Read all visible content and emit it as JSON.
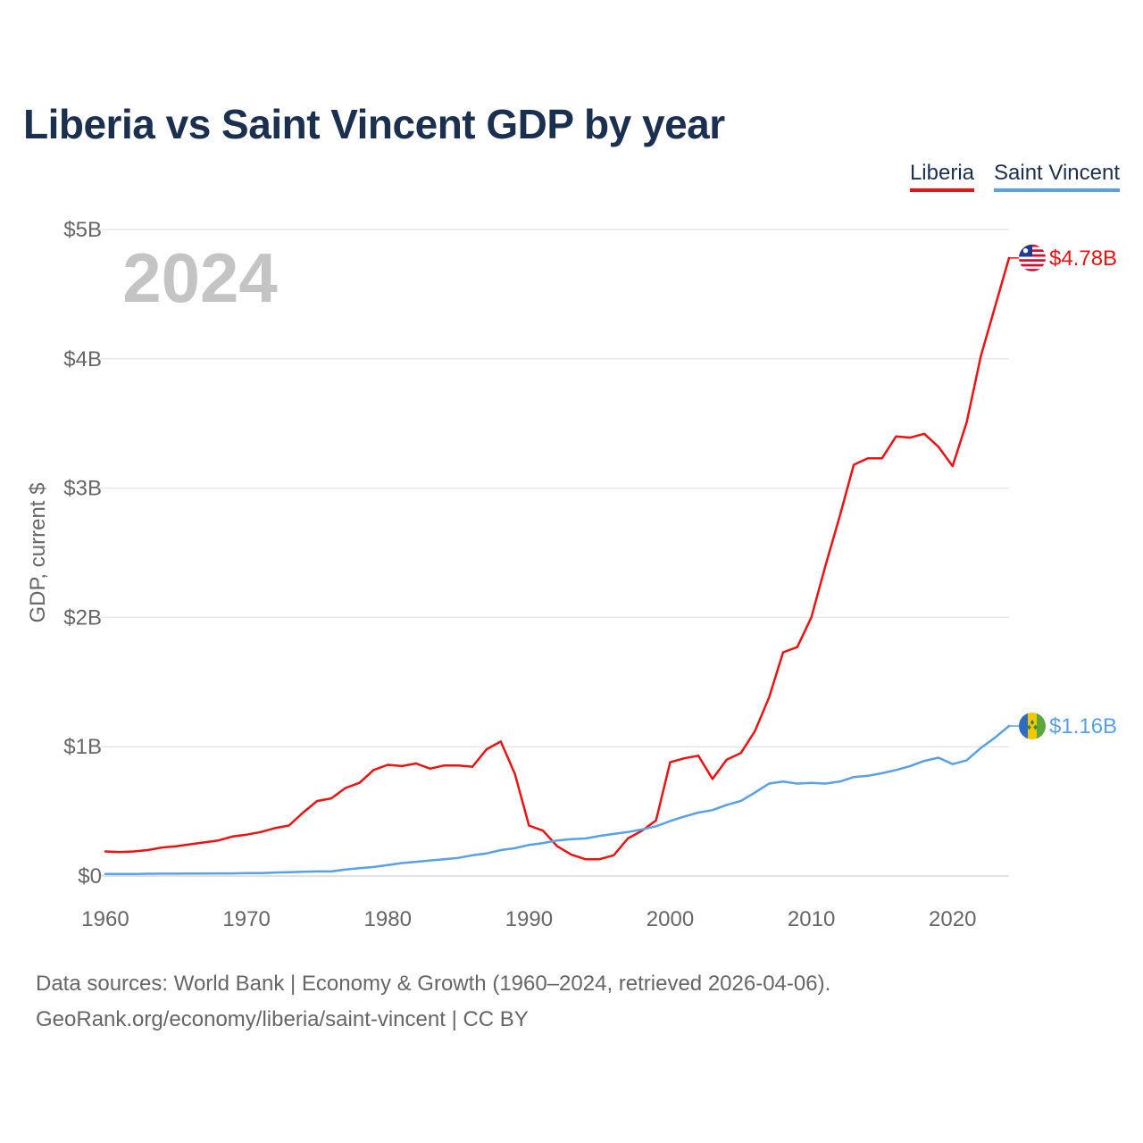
{
  "page": {
    "title": "Liberia vs Saint Vincent GDP by year",
    "source_line": "Data sources: World Bank | Economy & Growth (1960–2024, retrieved 2026-04-06).",
    "credit_line": "GeoRank.org/economy/liberia/saint-vincent | CC BY"
  },
  "legend": {
    "liberia_label": "Liberia",
    "saint_vincent_label": "Saint Vincent"
  },
  "chart_data": {
    "type": "line",
    "title": "Liberia vs Saint Vincent GDP by year",
    "xlabel": "",
    "ylabel": "GDP, current $",
    "year_watermark": "2024",
    "xlim": [
      1960,
      2024
    ],
    "ylim": [
      0,
      5
    ],
    "y_unit": "billions USD",
    "x_ticks": [
      1960,
      1970,
      1980,
      1990,
      2000,
      2010,
      2020
    ],
    "y_ticks": [
      {
        "value": 0,
        "label": "$0"
      },
      {
        "value": 1,
        "label": "$1B"
      },
      {
        "value": 2,
        "label": "$2B"
      },
      {
        "value": 3,
        "label": "$3B"
      },
      {
        "value": 4,
        "label": "$4B"
      },
      {
        "value": 5,
        "label": "$5B"
      }
    ],
    "grid": true,
    "legend_position": "top-right",
    "x": [
      1960,
      1961,
      1962,
      1963,
      1964,
      1965,
      1966,
      1967,
      1968,
      1969,
      1970,
      1971,
      1972,
      1973,
      1974,
      1975,
      1976,
      1977,
      1978,
      1979,
      1980,
      1981,
      1982,
      1983,
      1984,
      1985,
      1986,
      1987,
      1988,
      1989,
      1990,
      1991,
      1992,
      1993,
      1994,
      1995,
      1996,
      1997,
      1998,
      1999,
      2000,
      2001,
      2002,
      2003,
      2004,
      2005,
      2006,
      2007,
      2008,
      2009,
      2010,
      2011,
      2012,
      2013,
      2014,
      2015,
      2016,
      2017,
      2018,
      2019,
      2020,
      2021,
      2022,
      2023,
      2024
    ],
    "series": [
      {
        "name": "Liberia",
        "color": "#ee1111",
        "end_label": "$4.78B",
        "flag_icon": "liberia-flag-icon",
        "values": [
          0.19,
          0.185,
          0.19,
          0.2,
          0.22,
          0.23,
          0.245,
          0.26,
          0.275,
          0.305,
          0.32,
          0.34,
          0.37,
          0.39,
          0.49,
          0.58,
          0.6,
          0.68,
          0.72,
          0.82,
          0.86,
          0.85,
          0.87,
          0.83,
          0.855,
          0.855,
          0.845,
          0.98,
          1.04,
          0.79,
          0.39,
          0.35,
          0.23,
          0.165,
          0.13,
          0.13,
          0.16,
          0.29,
          0.35,
          0.43,
          0.88,
          0.91,
          0.93,
          0.75,
          0.9,
          0.95,
          1.12,
          1.38,
          1.73,
          1.77,
          2.0,
          2.4,
          2.78,
          3.18,
          3.23,
          3.23,
          3.4,
          3.39,
          3.42,
          3.32,
          3.17,
          3.51,
          4.02,
          4.4,
          4.78
        ]
      },
      {
        "name": "Saint Vincent",
        "color": "#5aa0e6",
        "end_label": "$1.16B",
        "flag_icon": "saint-vincent-flag-icon",
        "values": [
          0.015,
          0.016,
          0.016,
          0.017,
          0.018,
          0.018,
          0.019,
          0.019,
          0.02,
          0.02,
          0.022,
          0.023,
          0.027,
          0.03,
          0.033,
          0.035,
          0.035,
          0.05,
          0.06,
          0.07,
          0.085,
          0.1,
          0.11,
          0.12,
          0.13,
          0.14,
          0.16,
          0.175,
          0.2,
          0.215,
          0.24,
          0.255,
          0.275,
          0.285,
          0.29,
          0.31,
          0.325,
          0.34,
          0.36,
          0.385,
          0.425,
          0.46,
          0.49,
          0.51,
          0.55,
          0.58,
          0.645,
          0.715,
          0.73,
          0.715,
          0.72,
          0.715,
          0.73,
          0.765,
          0.775,
          0.795,
          0.82,
          0.85,
          0.89,
          0.915,
          0.865,
          0.895,
          0.99,
          1.07,
          1.16
        ]
      }
    ]
  }
}
